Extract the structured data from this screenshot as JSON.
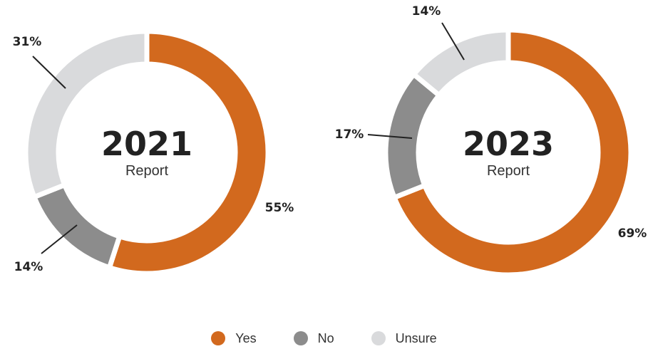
{
  "colors": {
    "Yes": "#D2691E",
    "No": "#8C8C8C",
    "Unsure": "#D9DADC"
  },
  "legend": [
    {
      "label": "Yes",
      "color": "#D2691E"
    },
    {
      "label": "No",
      "color": "#8C8C8C"
    },
    {
      "label": "Unsure",
      "color": "#D9DADC"
    }
  ],
  "chart_data": [
    {
      "type": "pie",
      "variant": "donut",
      "center_title": "2021",
      "center_subtitle": "Report",
      "slices": [
        {
          "category": "Yes",
          "value": 55,
          "label": "55%"
        },
        {
          "category": "No",
          "value": 14,
          "label": "14%"
        },
        {
          "category": "Unsure",
          "value": 31,
          "label": "31%"
        }
      ]
    },
    {
      "type": "pie",
      "variant": "donut",
      "center_title": "2023",
      "center_subtitle": "Report",
      "slices": [
        {
          "category": "Yes",
          "value": 69,
          "label": "69%"
        },
        {
          "category": "No",
          "value": 17,
          "label": "17%"
        },
        {
          "category": "Unsure",
          "value": 14,
          "label": "14%"
        }
      ]
    }
  ]
}
